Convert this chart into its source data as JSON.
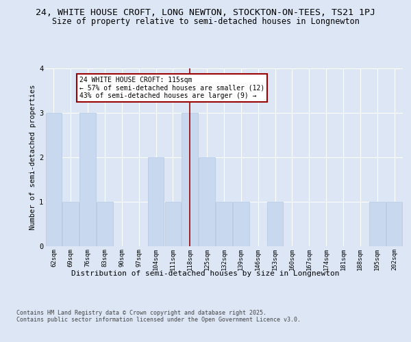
{
  "title_line1": "24, WHITE HOUSE CROFT, LONG NEWTON, STOCKTON-ON-TEES, TS21 1PJ",
  "title_line2": "Size of property relative to semi-detached houses in Longnewton",
  "categories": [
    "62sqm",
    "69sqm",
    "76sqm",
    "83sqm",
    "90sqm",
    "97sqm",
    "104sqm",
    "111sqm",
    "118sqm",
    "125sqm",
    "132sqm",
    "139sqm",
    "146sqm",
    "153sqm",
    "160sqm",
    "167sqm",
    "174sqm",
    "181sqm",
    "188sqm",
    "195sqm",
    "202sqm"
  ],
  "values": [
    3,
    1,
    3,
    1,
    0,
    0,
    2,
    1,
    3,
    2,
    1,
    1,
    0,
    1,
    0,
    0,
    0,
    0,
    0,
    1,
    1
  ],
  "bar_color": "#c8d9ef",
  "bar_edge_color": "#b0c8e4",
  "highlight_index": 8,
  "highlight_line_color": "#990000",
  "ylabel": "Number of semi-detached properties",
  "xlabel": "Distribution of semi-detached houses by size in Longnewton",
  "ylim": [
    0,
    4
  ],
  "yticks": [
    0,
    1,
    2,
    3,
    4
  ],
  "annotation_text": "24 WHITE HOUSE CROFT: 115sqm\n← 57% of semi-detached houses are smaller (12)\n43% of semi-detached houses are larger (9) →",
  "annotation_box_color": "#ffffff",
  "annotation_box_edge_color": "#990000",
  "footnote": "Contains HM Land Registry data © Crown copyright and database right 2025.\nContains public sector information licensed under the Open Government Licence v3.0.",
  "background_color": "#dce6f5",
  "plot_bg_color": "#dce6f5",
  "grid_color": "#ffffff",
  "title_fontsize": 9.5,
  "subtitle_fontsize": 8.5,
  "axis_label_fontsize": 8,
  "tick_fontsize": 6.5,
  "footnote_fontsize": 6,
  "ylabel_fontsize": 7.5
}
